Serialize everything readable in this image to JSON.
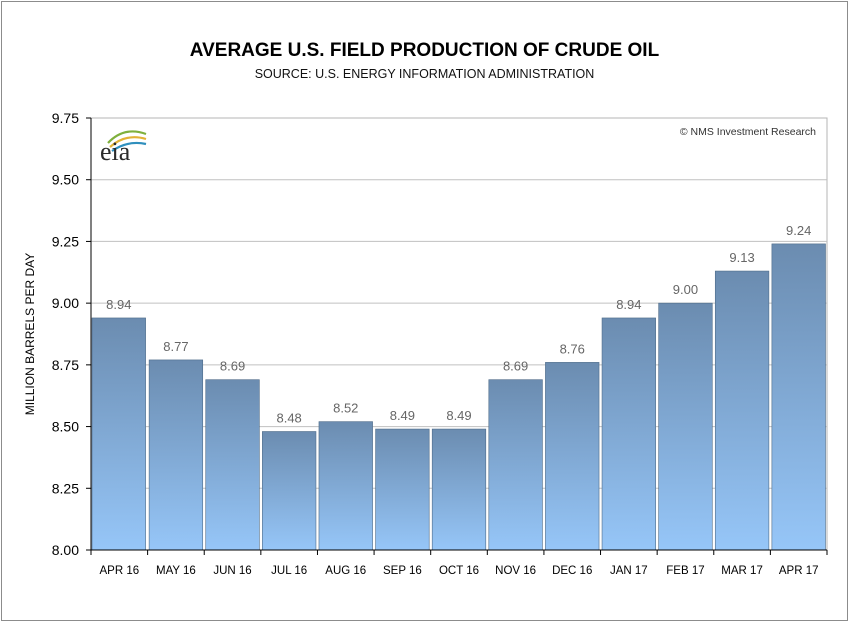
{
  "chart_data": {
    "type": "bar",
    "title": "AVERAGE U.S. FIELD PRODUCTION OF CRUDE OIL",
    "subtitle": "SOURCE: U.S. ENERGY INFORMATION ADMINISTRATION",
    "ylabel": "MILLION BARRELS PER DAY",
    "xlabel": "",
    "ylim": [
      8.0,
      9.75
    ],
    "yticks": [
      "8.00",
      "8.25",
      "8.50",
      "8.75",
      "9.00",
      "9.25",
      "9.50",
      "9.75"
    ],
    "categories": [
      "APR 16",
      "MAY 16",
      "JUN 16",
      "JUL 16",
      "AUG 16",
      "SEP 16",
      "OCT 16",
      "NOV 16",
      "DEC 16",
      "JAN 17",
      "FEB 17",
      "MAR 17",
      "APR 17"
    ],
    "values": [
      8.94,
      8.77,
      8.69,
      8.48,
      8.52,
      8.49,
      8.49,
      8.69,
      8.76,
      8.94,
      9.0,
      9.13,
      9.24
    ],
    "value_labels": [
      "8.94",
      "8.77",
      "8.69",
      "8.48",
      "8.52",
      "8.49",
      "8.49",
      "8.69",
      "8.76",
      "8.94",
      "9.00",
      "9.13",
      "9.24"
    ],
    "grid": true,
    "copyright": "© NMS Investment Research",
    "logo_text": "eia",
    "colors": {
      "bar_top": "#6b8cb0",
      "bar_bottom": "#96c6f8",
      "value_label": "#666666",
      "grid": "#c0c0c0",
      "axis": "#000000"
    }
  }
}
